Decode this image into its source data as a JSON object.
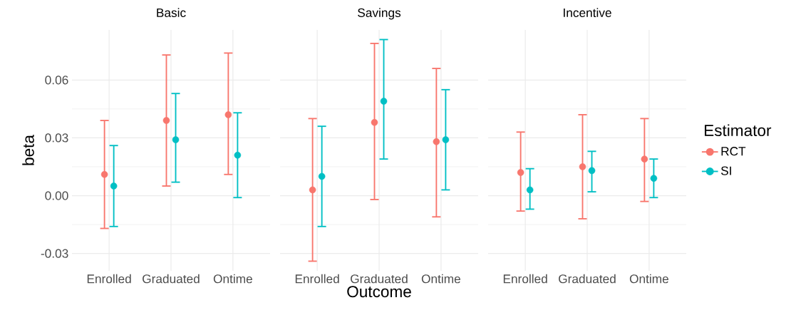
{
  "chart_data": [
    {
      "type": "scatter",
      "title": "Basic",
      "ylabel": "beta",
      "categories": [
        "Enrolled",
        "Graduated",
        "Ontime"
      ],
      "ylim": [
        -0.039,
        0.086
      ],
      "yticks": [
        {
          "value": -0.03,
          "label": "-0.03"
        },
        {
          "value": 0.0,
          "label": "0.00"
        },
        {
          "value": 0.03,
          "label": "0.03"
        },
        {
          "value": 0.06,
          "label": "0.06"
        }
      ],
      "grid": true,
      "marker": "circle",
      "series": [
        {
          "color": "#f8766d",
          "values": [
            0.011,
            0.039,
            0.042
          ],
          "errors": [
            [
              -0.017,
              0.039
            ],
            [
              0.005,
              0.073
            ],
            [
              0.011,
              0.074
            ]
          ]
        },
        {
          "color": "#00bfc4",
          "values": [
            0.005,
            0.029,
            0.021
          ],
          "errors": [
            [
              -0.016,
              0.026
            ],
            [
              0.007,
              0.053
            ],
            [
              -0.001,
              0.043
            ]
          ]
        }
      ]
    },
    {
      "type": "scatter",
      "title": "Savings",
      "xlabel": "Outcome",
      "categories": [
        "Enrolled",
        "Graduated",
        "Ontime"
      ],
      "ylim": [
        -0.039,
        0.086
      ],
      "yticks": [
        -0.03,
        0,
        0.03,
        0.06
      ],
      "tick_labels": "x",
      "grid": true,
      "marker": "circle",
      "series": [
        {
          "color": "#f8766d",
          "values": [
            0.003,
            0.038,
            0.028
          ],
          "errors": [
            [
              -0.034,
              0.04
            ],
            [
              -0.002,
              0.079
            ],
            [
              -0.011,
              0.066
            ]
          ]
        },
        {
          "color": "#00bfc4",
          "values": [
            0.01,
            0.049,
            0.029
          ],
          "errors": [
            [
              -0.016,
              0.036
            ],
            [
              0.019,
              0.081
            ],
            [
              0.003,
              0.055
            ]
          ]
        }
      ]
    },
    {
      "type": "scatter",
      "title": "Incentive",
      "legend_title": "Estimator",
      "legend": "right",
      "categories": [
        "Enrolled",
        "Graduated",
        "Ontime"
      ],
      "ylim": [
        -0.039,
        0.086
      ],
      "yticks": [
        -0.03,
        0,
        0.03,
        0.06
      ],
      "tick_labels": "x",
      "grid": true,
      "marker": "circle",
      "series": [
        {
          "name": "RCT",
          "color": "#f8766d",
          "values": [
            0.012,
            0.015,
            0.019
          ],
          "errors": [
            [
              -0.008,
              0.033
            ],
            [
              -0.012,
              0.042
            ],
            [
              -0.003,
              0.04
            ]
          ]
        },
        {
          "name": "SI",
          "color": "#00bfc4",
          "values": [
            0.003,
            0.013,
            0.009
          ],
          "errors": [
            [
              -0.007,
              0.014
            ],
            [
              0.002,
              0.023
            ],
            [
              -0.001,
              0.019
            ]
          ]
        }
      ]
    }
  ]
}
